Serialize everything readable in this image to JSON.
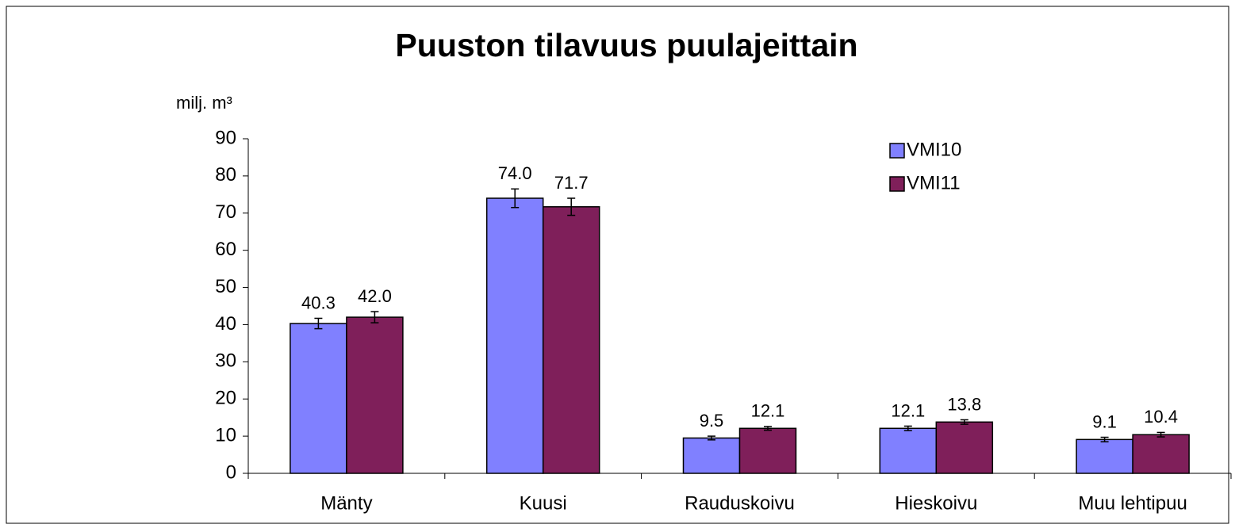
{
  "chart_data": {
    "type": "bar",
    "title": "Puuston tilavuus puulajeittain",
    "y_label": "milj. m³",
    "categories": [
      "Mänty",
      "Kuusi",
      "Rauduskoivu",
      "Hieskoivu",
      "Muu lehtipuu"
    ],
    "series": [
      {
        "name": "VMI10",
        "color": "#8080ff",
        "values": [
          40.3,
          74.0,
          9.5,
          12.1,
          9.1
        ],
        "value_labels": [
          "40.3",
          "74.0",
          "9.5",
          "12.1",
          "9.1"
        ],
        "errors": [
          1.4,
          2.5,
          0.5,
          0.6,
          0.6
        ]
      },
      {
        "name": "VMI11",
        "color": "#7f1f5a",
        "values": [
          42.0,
          71.7,
          12.1,
          13.8,
          10.4
        ],
        "value_labels": [
          "42.0",
          "71.7",
          "12.1",
          "13.8",
          "10.4"
        ],
        "errors": [
          1.5,
          2.3,
          0.5,
          0.6,
          0.6
        ]
      }
    ],
    "ylim": [
      0,
      90
    ],
    "yticks": [
      0,
      10,
      20,
      30,
      40,
      50,
      60,
      70,
      80,
      90
    ],
    "legend": "top-right",
    "grid": false
  }
}
